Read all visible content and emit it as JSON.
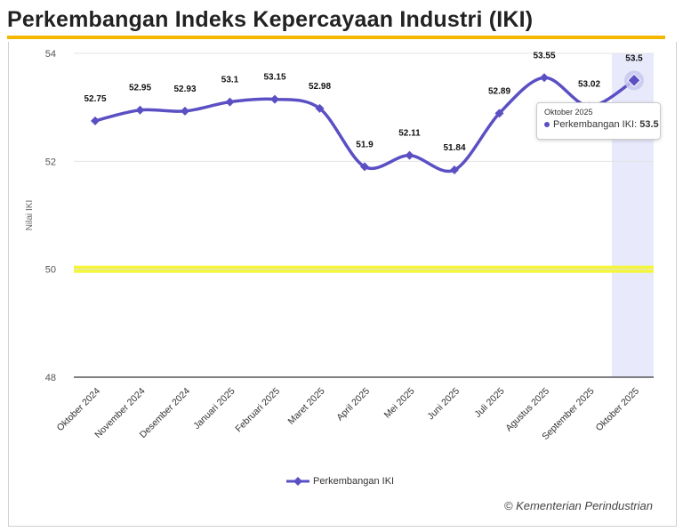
{
  "page": {
    "title": "Perkembangan Indeks Kepercayaan Industri (IKI)",
    "credit": "© Kementerian Perindustrian"
  },
  "colors": {
    "title_rule": "#f5b800",
    "series_line": "#5b4fc4",
    "threshold_band": "#f5f53a",
    "highlight_column": "#e8eafc"
  },
  "chart_data": {
    "type": "line",
    "title": "Perkembangan Indeks Kepercayaan Industri (IKI)",
    "xlabel": "",
    "ylabel": "Nilai IKI",
    "ylim": [
      48,
      54
    ],
    "yticks": [
      48,
      50,
      52,
      54
    ],
    "grid": true,
    "legend_position": "bottom",
    "categories": [
      "Oktober 2024",
      "November 2024",
      "Desember 2024",
      "Januari 2025",
      "Februari 2025",
      "Maret 2025",
      "April 2025",
      "Mei 2025",
      "Juni 2025",
      "Juli 2025",
      "Agustus 2025",
      "September 2025",
      "Oktober 2025"
    ],
    "series": [
      {
        "name": "Perkembangan IKI",
        "values": [
          52.75,
          52.95,
          52.93,
          53.1,
          53.15,
          52.98,
          51.9,
          52.11,
          51.84,
          52.89,
          53.55,
          53.02,
          53.5
        ],
        "labels": [
          "52.75",
          "52.95",
          "52.93",
          "53.1",
          "53.15",
          "52.98",
          "51.9",
          "52.11",
          "51.84",
          "52.89",
          "53.55",
          "53.02",
          "53.5"
        ]
      }
    ],
    "threshold": 50,
    "highlighted_category": "Oktober 2025"
  },
  "tooltip": {
    "title": "Oktober 2025",
    "series_label": "Perkembangan IKI: ",
    "value": "53.5"
  },
  "legend": {
    "label": "Perkembangan IKI"
  }
}
